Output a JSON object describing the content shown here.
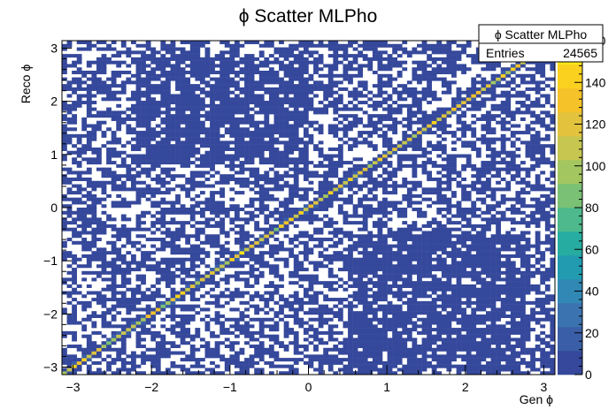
{
  "chart_data": {
    "type": "heatmap",
    "title": "ϕ Scatter MLPho",
    "xlabel": "Gen ϕ",
    "ylabel": "Reco ϕ",
    "xlim": [
      -3.14159,
      3.14159
    ],
    "ylim": [
      -3.14159,
      3.14159
    ],
    "x_ticks": [
      -3,
      -2,
      -1,
      0,
      1,
      2,
      3
    ],
    "x_tick_labels": [
      "−3",
      "−2",
      "−1",
      "0",
      "1",
      "2",
      "3"
    ],
    "y_ticks": [
      -3,
      -2,
      -1,
      0,
      1,
      2,
      3
    ],
    "y_tick_labels": [
      "−3",
      "−2",
      "−1",
      "0",
      "1",
      "2",
      "3"
    ],
    "nbins_x": 100,
    "nbins_y": 100,
    "z_range": [
      0,
      160
    ],
    "z_ticks": [
      0,
      20,
      40,
      60,
      80,
      100,
      120,
      140,
      160
    ],
    "z_tick_labels": [
      "0",
      "20",
      "40",
      "60",
      "80",
      "100",
      "120",
      "140",
      "160"
    ],
    "diagonal_peak_range": [
      90,
      150
    ],
    "off_diagonal_counts": [
      1,
      2,
      3
    ],
    "off_diagonal_fill_fraction": 0.55,
    "dense_bands": [
      {
        "x_range": [
          -2.2,
          0.0
        ],
        "y_range": [
          0.8,
          2.8
        ]
      },
      {
        "x_range": [
          0.5,
          2.8
        ],
        "y_range": [
          -3.1,
          -0.5
        ]
      }
    ],
    "palette": [
      "#35489b",
      "#3a5ea8",
      "#3b73b0",
      "#3188b4",
      "#229bb0",
      "#27aca1",
      "#4db98c",
      "#7ac175",
      "#a3c661",
      "#c6c650",
      "#e3c33d",
      "#f5c22a",
      "#fad11f",
      "#fbe51a"
    ],
    "stats_box": {
      "name": "ϕ Scatter MLPho",
      "entries_label": "Entries",
      "entries_value": "24565"
    }
  }
}
